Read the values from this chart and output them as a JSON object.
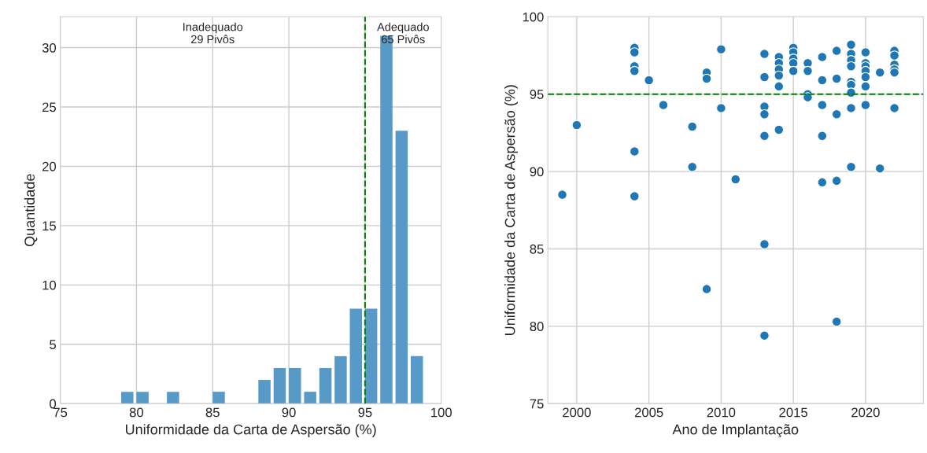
{
  "chart_data": [
    {
      "type": "histogram",
      "xlabel": "Uniformidade da Carta de Aspersão (%)",
      "ylabel": "Quantidade",
      "bins": [
        78.9,
        79.9,
        80.9,
        81.9,
        82.9,
        83.9,
        84.9,
        85.9,
        86.9,
        87.9,
        88.9,
        89.9,
        90.9,
        91.9,
        92.9,
        93.9,
        94.9,
        95.9,
        96.9,
        97.9,
        98.9
      ],
      "values": [
        1,
        1,
        0,
        1,
        0,
        0,
        1,
        0,
        0,
        2,
        3,
        3,
        1,
        3,
        4,
        8,
        8,
        31,
        23,
        4
      ],
      "color": "#5799c7",
      "xlim": [
        75,
        100
      ],
      "xticks": [
        75,
        80,
        85,
        90,
        95,
        100
      ],
      "ylim": [
        0,
        32.6
      ],
      "yticks": [
        0,
        5,
        10,
        15,
        20,
        25,
        30
      ],
      "ref_lines": [
        {
          "axis": "x",
          "value": 95,
          "color": "#008000",
          "line_style": "dashed"
        }
      ],
      "annotations": [
        "Inadequado\n29 Pivôs",
        "Adequado\n65 Pivôs"
      ],
      "grid": true
    },
    {
      "type": "scatter",
      "xlabel": "Ano de Implantação",
      "ylabel": "Uniformidade da Carta de Aspersão (%)",
      "x": [
        1999,
        2000,
        2004,
        2004,
        2004,
        2004,
        2004,
        2004,
        2005,
        2006,
        2008,
        2008,
        2009,
        2009,
        2009,
        2010,
        2010,
        2011,
        2013,
        2013,
        2013,
        2013,
        2013,
        2013,
        2013,
        2014,
        2014,
        2014,
        2014,
        2014,
        2014,
        2015,
        2015,
        2015,
        2015,
        2015,
        2016,
        2016,
        2016,
        2016,
        2017,
        2017,
        2017,
        2017,
        2017,
        2018,
        2018,
        2018,
        2018,
        2018,
        2019,
        2019,
        2019,
        2019,
        2019,
        2019,
        2019,
        2019,
        2019,
        2020,
        2020,
        2020,
        2020,
        2020,
        2020,
        2020,
        2021,
        2021,
        2022,
        2022,
        2022,
        2022,
        2022,
        2022
      ],
      "values": [
        88.5,
        93.0,
        98.0,
        97.7,
        96.8,
        96.5,
        91.3,
        88.4,
        95.9,
        94.3,
        92.9,
        90.3,
        96.4,
        96.0,
        82.4,
        97.9,
        94.1,
        89.5,
        97.6,
        96.1,
        94.2,
        93.7,
        92.3,
        85.3,
        79.4,
        97.4,
        97.0,
        96.6,
        96.2,
        95.5,
        92.7,
        98.0,
        97.7,
        97.3,
        97.0,
        96.5,
        97.0,
        96.5,
        95.0,
        94.8,
        97.4,
        95.9,
        94.3,
        92.3,
        89.3,
        97.8,
        96.0,
        93.7,
        89.4,
        80.3,
        98.2,
        97.6,
        97.2,
        96.8,
        95.8,
        95.6,
        95.1,
        94.1,
        90.3,
        97.7,
        97.0,
        96.8,
        96.5,
        96.1,
        95.5,
        94.3,
        96.4,
        90.2,
        97.8,
        97.5,
        96.9,
        96.6,
        96.4,
        94.1
      ],
      "color": "#1f77b4",
      "marker": "circle",
      "xlim": [
        1998,
        2024
      ],
      "xticks": [
        2000,
        2005,
        2010,
        2015,
        2020
      ],
      "ylim": [
        75,
        100
      ],
      "yticks": [
        75,
        80,
        85,
        90,
        95,
        100
      ],
      "ref_lines": [
        {
          "axis": "y",
          "value": 95,
          "color": "#008000",
          "line_style": "dashed"
        }
      ],
      "grid": true
    }
  ]
}
